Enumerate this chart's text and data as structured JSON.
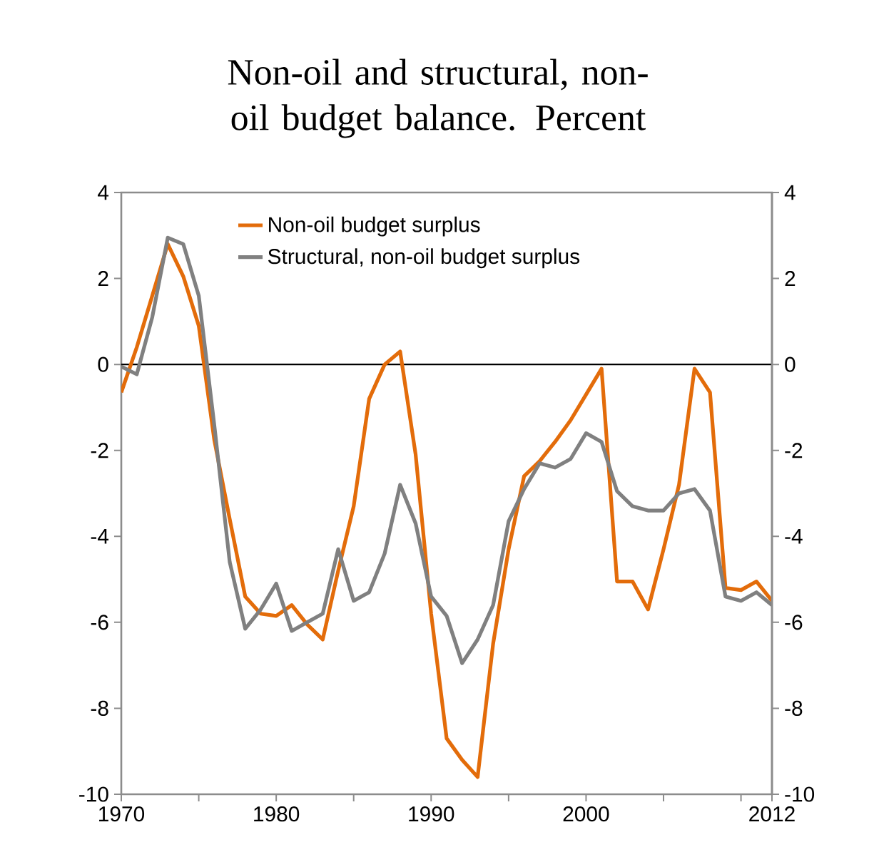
{
  "chart_data": {
    "type": "line",
    "title": "Non-oil and structural, non-oil budget balance. Percent",
    "x": [
      1970,
      1971,
      1972,
      1973,
      1974,
      1975,
      1976,
      1977,
      1978,
      1979,
      1980,
      1981,
      1982,
      1983,
      1984,
      1985,
      1986,
      1987,
      1988,
      1989,
      1990,
      1991,
      1992,
      1993,
      1994,
      1995,
      1996,
      1997,
      1998,
      1999,
      2000,
      2001,
      2002,
      2003,
      2004,
      2005,
      2006,
      2007,
      2008,
      2009,
      2010,
      2011,
      2012
    ],
    "series": [
      {
        "name": "Non-oil budget surplus",
        "color": "#e36c0a",
        "values": [
          -0.65,
          0.4,
          1.6,
          2.8,
          2.05,
          0.9,
          -1.75,
          -3.6,
          -5.4,
          -5.8,
          -5.85,
          -5.6,
          -6.05,
          -6.4,
          -4.8,
          -3.3,
          -0.8,
          0.0,
          0.3,
          -2.1,
          -5.8,
          -8.7,
          -9.2,
          -9.6,
          -6.5,
          -4.3,
          -2.6,
          -2.25,
          -1.8,
          -1.3,
          -0.7,
          -0.1,
          -5.05,
          -5.05,
          -5.7,
          -4.3,
          -2.8,
          -0.1,
          -0.65,
          -5.2,
          -5.25,
          -5.05,
          -5.5
        ]
      },
      {
        "name": "Structural, non-oil budget surplus",
        "color": "#808080",
        "values": [
          -0.05,
          -0.23,
          1.1,
          2.95,
          2.8,
          1.6,
          -1.4,
          -4.6,
          -6.15,
          -5.7,
          -5.1,
          -6.2,
          -6.0,
          -5.8,
          -4.3,
          -5.5,
          -5.3,
          -4.4,
          -2.8,
          -3.7,
          -5.4,
          -5.85,
          -6.95,
          -6.4,
          -5.6,
          -3.65,
          -2.9,
          -2.3,
          -2.4,
          -2.2,
          -1.6,
          -1.8,
          -2.95,
          -3.3,
          -3.4,
          -3.4,
          -3.0,
          -2.9,
          -3.4,
          -5.4,
          -5.5,
          -5.3,
          -5.6
        ]
      }
    ],
    "xlim": [
      1970,
      2012
    ],
    "xticks": [
      1970,
      {
        "value": 1975,
        "label": null
      },
      1980,
      {
        "value": 1985,
        "label": null
      },
      1990,
      {
        "value": 1995,
        "label": null
      },
      2000,
      {
        "value": 2005,
        "label": null
      },
      {
        "value": 2010,
        "label": null
      },
      2012
    ],
    "ylim": [
      -10,
      4
    ],
    "yticks": [
      -10,
      -8,
      -6,
      -4,
      -2,
      0,
      2,
      4
    ],
    "y2lim": [
      -10,
      4
    ],
    "y2ticks": [
      -10,
      -8,
      -6,
      -4,
      -2,
      0,
      2,
      4
    ],
    "ref_lines": [
      {
        "axis": "y",
        "value": 0,
        "color": "#000000"
      }
    ],
    "legend": "top"
  }
}
